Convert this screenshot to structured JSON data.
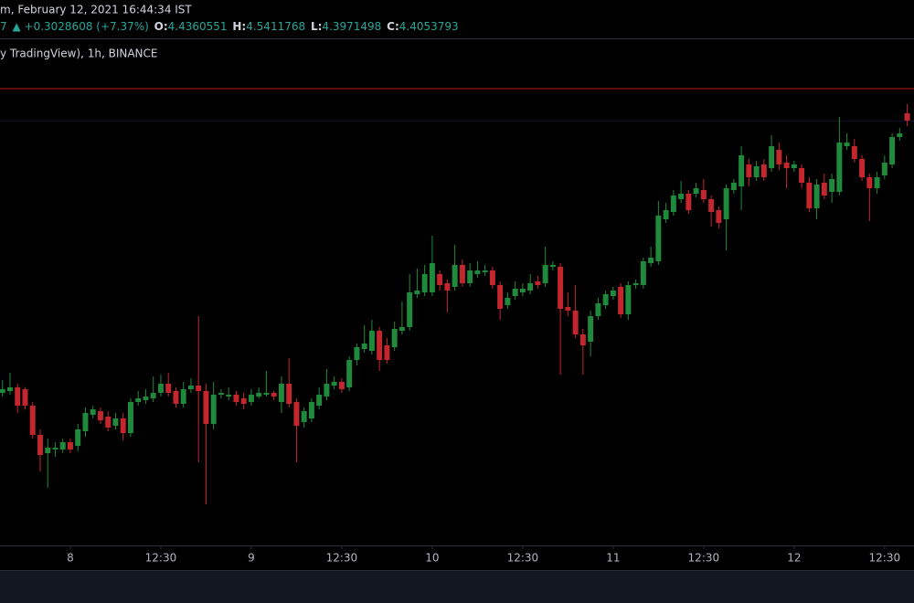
{
  "chart_data": {
    "type": "candlestick",
    "header": {
      "date": "m, February 12, 2021 16:44:34 IST",
      "prefix": "7",
      "change": "▲ +0.3028608 (+7.37%)",
      "o_label": "O:",
      "o_value": "4.4360551",
      "h_label": "H:",
      "h_value": "4.5411768",
      "l_label": "L:",
      "l_value": "4.3971498",
      "c_label": "C:",
      "c_value": "4.4053793",
      "source": "y TradingView), 1h, BINANCE"
    },
    "up_color": "#1f8a3b",
    "down_color": "#c4262e",
    "price_line_color": "#b71c1c",
    "price_line": 4.515,
    "ylim": [
      2.015,
      4.79
    ],
    "xlim": [
      -0.33,
      120.9
    ],
    "xticks": [
      {
        "value": 9,
        "label": "8"
      },
      {
        "value": 21,
        "label": "12:30"
      },
      {
        "value": 33,
        "label": "9"
      },
      {
        "value": 45,
        "label": "12:30"
      },
      {
        "value": 57,
        "label": "10"
      },
      {
        "value": 69,
        "label": "12:30"
      },
      {
        "value": 81,
        "label": "11"
      },
      {
        "value": 93,
        "label": "12:30"
      },
      {
        "value": 105,
        "label": "12"
      },
      {
        "value": 117,
        "label": "12:30"
      }
    ],
    "open": [
      2.85,
      2.86,
      2.88,
      2.87,
      2.78,
      2.62,
      2.52,
      2.54,
      2.54,
      2.58,
      2.56,
      2.64,
      2.73,
      2.75,
      2.72,
      2.67,
      2.71,
      2.63,
      2.8,
      2.81,
      2.82,
      2.85,
      2.9,
      2.86,
      2.79,
      2.87,
      2.89,
      2.86,
      2.68,
      2.84,
      2.83,
      2.84,
      2.82,
      2.8,
      2.83,
      2.84,
      2.85,
      2.8,
      2.9,
      2.8,
      2.69,
      2.71,
      2.78,
      2.83,
      2.89,
      2.91,
      2.88,
      3.03,
      3.09,
      3.08,
      3.19,
      3.11,
      3.1,
      3.19,
      3.21,
      3.39,
      3.4,
      3.4,
      3.5,
      3.45,
      3.43,
      3.55,
      3.45,
      3.5,
      3.51,
      3.52,
      3.44,
      3.33,
      3.38,
      3.4,
      3.41,
      3.46,
      3.45,
      3.54,
      3.54,
      3.32,
      3.3,
      3.17,
      3.13,
      3.27,
      3.33,
      3.38,
      3.43,
      3.28,
      3.44,
      3.44,
      3.56,
      3.57,
      3.8,
      3.84,
      3.91,
      3.94,
      3.94,
      3.96,
      3.91,
      3.85,
      3.8,
      3.96,
      3.98,
      4.1,
      4.03,
      4.1,
      4.08,
      4.18,
      4.11,
      4.08,
      4.08,
      4.0,
      3.86,
      4.0,
      3.95,
      3.95,
      4.2,
      4.2,
      4.13,
      4.03,
      3.97,
      4.04,
      4.1,
      4.25,
      4.38
    ],
    "high": [
      2.92,
      2.96,
      2.9,
      2.88,
      2.8,
      2.65,
      2.6,
      2.58,
      2.6,
      2.6,
      2.68,
      2.77,
      2.78,
      2.77,
      2.75,
      2.74,
      2.74,
      2.82,
      2.86,
      2.87,
      2.94,
      2.95,
      2.96,
      2.88,
      2.91,
      2.93,
      3.27,
      2.9,
      2.91,
      2.87,
      2.88,
      2.86,
      2.85,
      2.87,
      2.88,
      2.97,
      2.86,
      2.94,
      3.04,
      2.82,
      2.77,
      2.82,
      2.88,
      2.98,
      2.94,
      2.93,
      3.05,
      3.12,
      3.22,
      3.25,
      3.21,
      3.15,
      3.24,
      3.35,
      3.5,
      3.53,
      3.55,
      3.71,
      3.52,
      3.47,
      3.66,
      3.58,
      3.56,
      3.57,
      3.55,
      3.54,
      3.46,
      3.4,
      3.46,
      3.45,
      3.5,
      3.49,
      3.65,
      3.57,
      3.56,
      3.4,
      3.44,
      3.2,
      3.3,
      3.37,
      3.41,
      3.43,
      3.45,
      3.46,
      3.47,
      3.59,
      3.65,
      3.9,
      3.89,
      3.96,
      4.01,
      3.96,
      4.0,
      4.02,
      3.93,
      3.87,
      3.99,
      4.02,
      4.2,
      4.13,
      4.12,
      4.13,
      4.26,
      4.22,
      4.15,
      4.12,
      4.1,
      4.03,
      4.02,
      4.05,
      4.05,
      4.36,
      4.27,
      4.24,
      4.15,
      4.05,
      4.06,
      4.15,
      4.27,
      4.3,
      4.43
    ],
    "low": [
      2.83,
      2.84,
      2.74,
      2.76,
      2.6,
      2.42,
      2.33,
      2.5,
      2.52,
      2.52,
      2.53,
      2.61,
      2.71,
      2.68,
      2.64,
      2.65,
      2.59,
      2.61,
      2.78,
      2.79,
      2.8,
      2.83,
      2.83,
      2.77,
      2.77,
      2.85,
      2.47,
      2.24,
      2.65,
      2.82,
      2.81,
      2.78,
      2.76,
      2.78,
      2.82,
      2.83,
      2.81,
      2.74,
      2.77,
      2.47,
      2.66,
      2.69,
      2.76,
      2.81,
      2.87,
      2.85,
      2.86,
      3.0,
      3.07,
      3.06,
      2.97,
      3.01,
      3.08,
      3.17,
      3.19,
      3.37,
      3.38,
      3.38,
      3.41,
      3.29,
      3.41,
      3.43,
      3.43,
      3.48,
      3.49,
      3.42,
      3.25,
      3.31,
      3.36,
      3.38,
      3.39,
      3.42,
      3.43,
      3.52,
      2.95,
      3.27,
      3.15,
      2.95,
      3.05,
      3.25,
      3.31,
      3.36,
      3.26,
      3.25,
      3.42,
      3.42,
      3.54,
      3.55,
      3.78,
      3.82,
      3.89,
      3.83,
      3.92,
      3.89,
      3.76,
      3.75,
      3.63,
      3.94,
      3.85,
      3.98,
      4.01,
      4.01,
      4.06,
      4.07,
      3.97,
      4.06,
      3.97,
      3.84,
      3.8,
      3.91,
      3.89,
      3.93,
      4.18,
      4.11,
      4.01,
      3.79,
      3.94,
      4.02,
      4.08,
      4.23,
      4.31
    ],
    "close": [
      2.87,
      2.88,
      2.78,
      2.78,
      2.62,
      2.51,
      2.55,
      2.55,
      2.58,
      2.54,
      2.65,
      2.74,
      2.76,
      2.7,
      2.66,
      2.71,
      2.63,
      2.8,
      2.82,
      2.83,
      2.85,
      2.9,
      2.85,
      2.79,
      2.87,
      2.89,
      2.86,
      2.68,
      2.84,
      2.85,
      2.84,
      2.8,
      2.79,
      2.84,
      2.85,
      2.85,
      2.83,
      2.9,
      2.79,
      2.67,
      2.75,
      2.8,
      2.84,
      2.9,
      2.91,
      2.87,
      3.03,
      3.1,
      3.12,
      3.19,
      3.03,
      3.03,
      3.2,
      3.21,
      3.4,
      3.41,
      3.5,
      3.56,
      3.44,
      3.41,
      3.55,
      3.45,
      3.52,
      3.52,
      3.52,
      3.44,
      3.31,
      3.37,
      3.42,
      3.42,
      3.45,
      3.44,
      3.55,
      3.55,
      3.31,
      3.3,
      3.17,
      3.11,
      3.27,
      3.34,
      3.39,
      3.41,
      3.28,
      3.44,
      3.45,
      3.57,
      3.59,
      3.82,
      3.85,
      3.93,
      3.94,
      3.85,
      3.97,
      3.91,
      3.84,
      3.78,
      3.97,
      4.0,
      4.15,
      4.03,
      4.09,
      4.03,
      4.2,
      4.1,
      4.08,
      4.1,
      4.0,
      3.86,
      3.99,
      3.93,
      4.02,
      4.22,
      4.22,
      4.13,
      4.03,
      3.97,
      4.03,
      4.11,
      4.25,
      4.27,
      4.34
    ]
  }
}
